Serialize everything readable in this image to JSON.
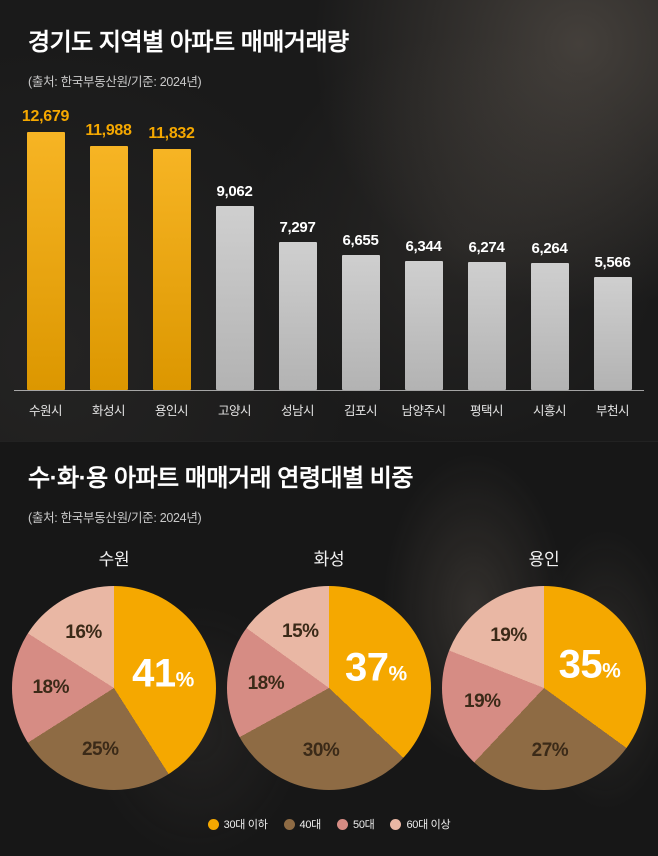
{
  "chart_data": [
    {
      "type": "bar",
      "title": "경기도 지역별 아파트 매매거래량",
      "source": "(출처: 한국부동산원/기준: 2024년)",
      "categories": [
        "수원시",
        "화성시",
        "용인시",
        "고양시",
        "성남시",
        "김포시",
        "남양주시",
        "평택시",
        "시흥시",
        "부천시"
      ],
      "values": [
        12679,
        11988,
        11832,
        9062,
        7297,
        6655,
        6344,
        6274,
        6264,
        5566
      ],
      "value_labels": [
        "12,679",
        "11,988",
        "11,832",
        "9,062",
        "7,297",
        "6,655",
        "6,344",
        "6,274",
        "6,264",
        "5,566"
      ],
      "highlight_count": 3,
      "highlight_color": "#f5a800",
      "bar_color": "#c7c7c7",
      "value_color": "#ffffff",
      "ylim": [
        0,
        13000
      ],
      "grid": "off",
      "legend": "none"
    },
    {
      "type": "pie",
      "title": "수·화·용 아파트 매매거래 연령대별 비중",
      "source": "(출처: 한국부동산원/기준: 2024년)",
      "categories": [
        "30대 이하",
        "40대",
        "50대",
        "60대 이상"
      ],
      "colors": [
        "#f5a800",
        "#8e6b44",
        "#d68c84",
        "#e9b7a4"
      ],
      "legend_position": "bottom-center",
      "pies": [
        {
          "name": "수원",
          "values": [
            41,
            25,
            18,
            16
          ]
        },
        {
          "name": "화성",
          "values": [
            37,
            30,
            18,
            15
          ]
        },
        {
          "name": "용인",
          "values": [
            35,
            27,
            19,
            19
          ]
        }
      ]
    }
  ]
}
